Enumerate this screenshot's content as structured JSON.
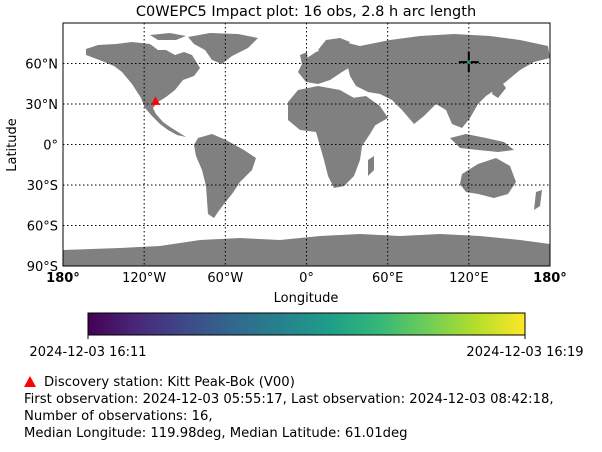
{
  "chart_data": {
    "type": "scatter",
    "title": "C0WEPC5 Impact plot: 16 obs, 2.8 h arc length",
    "xlabel": "Longitude",
    "ylabel": "Latitude",
    "xlim": [
      -180,
      180
    ],
    "ylim": [
      -90,
      90
    ],
    "x_ticks": [
      -180,
      -120,
      -60,
      0,
      60,
      120,
      180
    ],
    "x_tick_labels": [
      "180°",
      "120°W",
      "60°W",
      "0°",
      "60°E",
      "120°E",
      "180°"
    ],
    "y_ticks": [
      60,
      30,
      0,
      -30,
      -60,
      -90
    ],
    "y_tick_labels": [
      "60°N",
      "30°N",
      "0°",
      "30°S",
      "60°S",
      "90°S"
    ],
    "grid": true,
    "grid_style": "dotted",
    "land_color": "#808080",
    "ocean_color": "#ffffff",
    "marker_color": "#000000",
    "impact_points": {
      "lon": [
        119.6,
        119.7,
        119.8,
        119.85,
        119.9,
        119.95,
        119.98,
        119.98,
        120.0,
        120.02,
        120.05,
        120.1,
        120.15,
        120.2,
        120.25,
        120.3
      ],
      "lat": [
        60.6,
        60.7,
        60.75,
        60.8,
        60.9,
        60.95,
        61.0,
        61.01,
        61.02,
        61.05,
        61.1,
        61.15,
        61.2,
        61.3,
        61.35,
        61.4
      ],
      "time_fraction": [
        0.0,
        0.07,
        0.13,
        0.2,
        0.27,
        0.33,
        0.4,
        0.47,
        0.53,
        0.6,
        0.67,
        0.73,
        0.8,
        0.87,
        0.93,
        1.0
      ]
    },
    "median_marker": {
      "lon": 119.98,
      "lat": 61.01
    },
    "station": {
      "lon": -111.6,
      "lat": 31.96,
      "color": "#ff0000",
      "symbol": "triangle"
    },
    "colorbar": {
      "colormap": "viridis",
      "colors": [
        "#440154",
        "#482878",
        "#3e4989",
        "#31688e",
        "#26828e",
        "#1f9e89",
        "#35b779",
        "#6ece58",
        "#b5de2b",
        "#fde725"
      ],
      "min_label": "2024-12-03 16:11",
      "max_label": "2024-12-03 16:19"
    }
  },
  "info": {
    "discovery_station": "Discovery station: Kitt Peak-Bok (V00)",
    "observations_line": "First observation: 2024-12-03 05:55:17, Last observation: 2024-12-03 08:42:18,",
    "count_line": "Number of observations: 16,",
    "median_line": "Median Longitude: 119.98deg, Median Latitude: 61.01deg"
  }
}
